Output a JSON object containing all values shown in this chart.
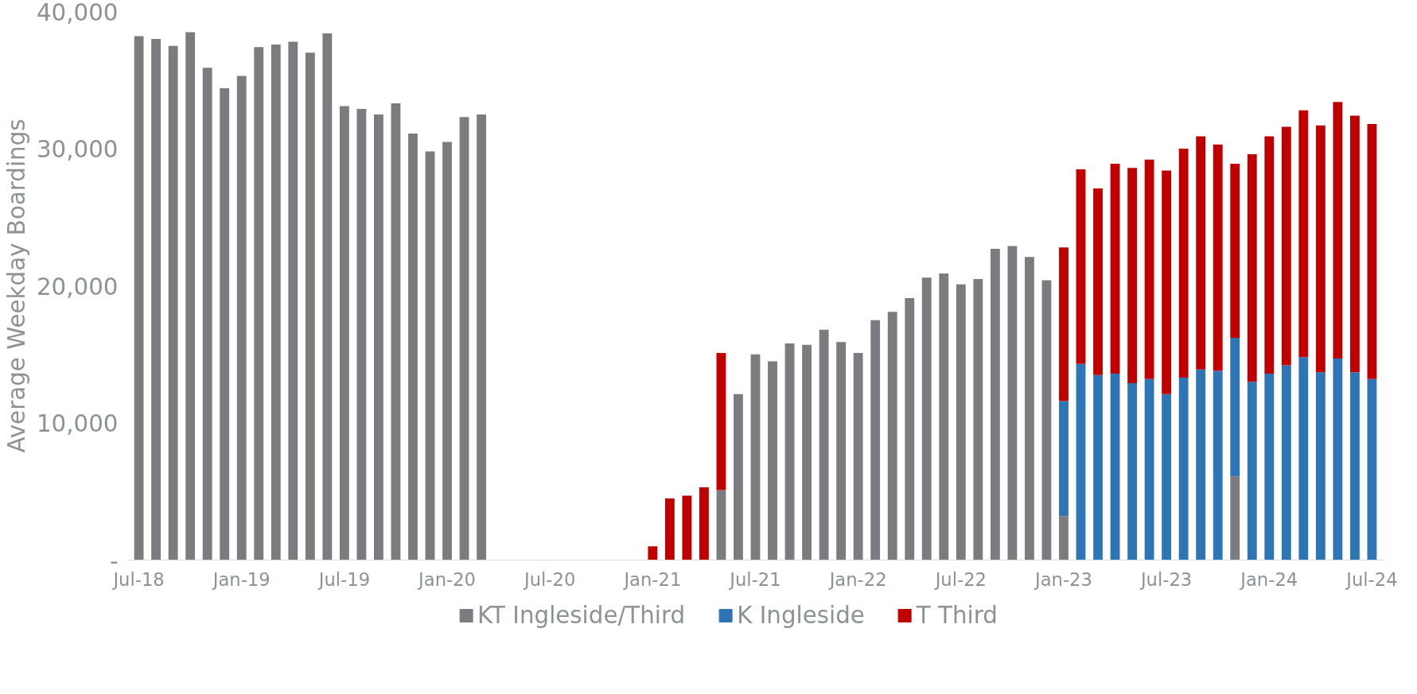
{
  "chart_data": {
    "type": "bar",
    "stacked": true,
    "ylabel": "Average Weekday Boardings",
    "categories": [
      "Jul-18",
      null,
      null,
      null,
      null,
      null,
      "Jan-19",
      null,
      null,
      null,
      null,
      null,
      "Jul-19",
      null,
      null,
      null,
      null,
      null,
      "Jan-20",
      null,
      null,
      null,
      null,
      null,
      "Jul-20",
      null,
      null,
      null,
      null,
      null,
      "Jan-21",
      null,
      null,
      null,
      null,
      null,
      "Jul-21",
      null,
      null,
      null,
      null,
      null,
      "Jan-22",
      null,
      null,
      null,
      null,
      null,
      "Jul-22",
      null,
      null,
      null,
      null,
      null,
      "Jan-23",
      null,
      null,
      null,
      null,
      null,
      "Jul-23",
      null,
      null,
      null,
      null,
      null,
      "Jan-24",
      null,
      null,
      null,
      null,
      null,
      "Jul-24"
    ],
    "series": [
      {
        "name": "KT Ingleside/Third",
        "color": "#7b7c80",
        "values": [
          38200,
          38000,
          37500,
          38500,
          35900,
          34400,
          35300,
          37400,
          37600,
          37800,
          37000,
          38400,
          33100,
          32900,
          32500,
          33300,
          31100,
          29800,
          30500,
          32300,
          32500,
          null,
          null,
          null,
          null,
          null,
          null,
          null,
          null,
          null,
          null,
          null,
          null,
          null,
          5100,
          12100,
          15000,
          14500,
          15800,
          15700,
          16800,
          15900,
          15100,
          17500,
          18100,
          19100,
          20600,
          20900,
          20100,
          20500,
          22700,
          22900,
          22100,
          20400,
          3200,
          null,
          null,
          null,
          null,
          null,
          null,
          null,
          null,
          null,
          6100,
          null,
          null,
          null,
          null,
          null,
          null,
          null,
          null
        ]
      },
      {
        "name": "K Ingleside",
        "color": "#2e75b6",
        "values": [
          null,
          null,
          null,
          null,
          null,
          null,
          null,
          null,
          null,
          null,
          null,
          null,
          null,
          null,
          null,
          null,
          null,
          null,
          null,
          null,
          null,
          null,
          null,
          null,
          null,
          null,
          null,
          null,
          null,
          null,
          null,
          null,
          null,
          null,
          null,
          null,
          null,
          null,
          null,
          null,
          null,
          null,
          null,
          null,
          null,
          null,
          null,
          null,
          null,
          null,
          null,
          null,
          null,
          null,
          8400,
          14300,
          13500,
          13600,
          12900,
          13200,
          12100,
          13300,
          13900,
          13800,
          10100,
          13000,
          13600,
          14200,
          14800,
          13700,
          14700,
          13700,
          13200
        ]
      },
      {
        "name": "T Third",
        "color": "#c00000",
        "values": [
          null,
          null,
          null,
          null,
          null,
          null,
          null,
          null,
          null,
          null,
          null,
          null,
          null,
          null,
          null,
          null,
          null,
          null,
          null,
          null,
          null,
          null,
          null,
          null,
          null,
          null,
          null,
          null,
          null,
          null,
          1000,
          4500,
          4700,
          5300,
          10000,
          null,
          null,
          null,
          null,
          null,
          null,
          null,
          null,
          null,
          null,
          null,
          null,
          null,
          null,
          null,
          null,
          null,
          null,
          null,
          11200,
          14200,
          13600,
          15300,
          15700,
          16000,
          16300,
          16700,
          17000,
          16500,
          12700,
          16600,
          17300,
          17400,
          18000,
          18000,
          18700,
          18700,
          18600
        ]
      }
    ],
    "ylim": [
      0,
      40000
    ],
    "yticks": [
      {
        "value": 0,
        "label": "-"
      },
      {
        "value": 10000,
        "label": "10,000"
      },
      {
        "value": 20000,
        "label": "20,000"
      },
      {
        "value": 30000,
        "label": "30,000"
      },
      {
        "value": 40000,
        "label": "40,000"
      }
    ],
    "grid": false,
    "legend": "bottom"
  }
}
